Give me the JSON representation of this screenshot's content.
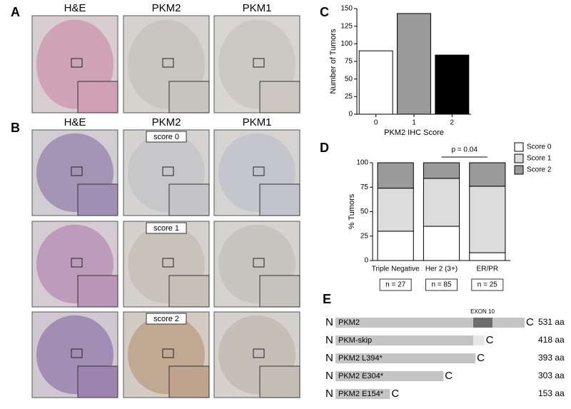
{
  "panel_labels": [
    "A",
    "B",
    "C",
    "D",
    "E"
  ],
  "panel_a": {
    "columns": [
      "H&E",
      "PKM2",
      "PKM1"
    ]
  },
  "panel_b": {
    "columns": [
      "H&E",
      "PKM2",
      "PKM1"
    ],
    "scores": [
      "score 0",
      "score 1",
      "score 2"
    ]
  },
  "chart_data": [
    {
      "type": "bar",
      "categories": [
        "0",
        "1",
        "2"
      ],
      "values": [
        90,
        143,
        84
      ],
      "colors": [
        "#ffffff",
        "#9a9a9a",
        "#000000"
      ],
      "ylim": [
        0,
        150
      ],
      "yticks": [
        0,
        25,
        50,
        75,
        100,
        125,
        150
      ],
      "xlabel": "PKM2 IHC Score",
      "ylabel": "Number of Tumors"
    },
    {
      "type": "stacked_bar",
      "categories": [
        "Triple Negative",
        "Her 2 (3+)",
        "ER/PR"
      ],
      "series": [
        {
          "name": "Score 0",
          "color": "#ffffff",
          "values": [
            30,
            35,
            8
          ]
        },
        {
          "name": "Score 1",
          "color": "#dcdcdc",
          "values": [
            44,
            49,
            68
          ]
        },
        {
          "name": "Score 2",
          "color": "#9a9a9a",
          "values": [
            26,
            16,
            24
          ]
        }
      ],
      "ylim": [
        0,
        100
      ],
      "yticks": [
        0,
        25,
        50,
        75,
        100
      ],
      "ylabel": "% Tumors",
      "annotation": "p = 0.04",
      "sample_sizes": [
        "n = 27",
        "n = 85",
        "n = 25"
      ],
      "legend": "upper right"
    }
  ],
  "panel_e": {
    "annotation": "EXON 10",
    "n_terminus": "N",
    "c_terminus": "C",
    "proteins": [
      {
        "name": "PKM2",
        "length": {
          "value": 531,
          "label": "531 aa"
        }
      },
      {
        "name": "PKM-skip",
        "length": {
          "value": 418,
          "label": "418 aa"
        }
      },
      {
        "name": "PKM2 L394*",
        "length": {
          "value": 393,
          "label": "393 aa"
        }
      },
      {
        "name": "PKM2 E304*",
        "length": {
          "value": 303,
          "label": "303 aa"
        }
      },
      {
        "name": "PKM2 E154*",
        "length": {
          "value": 153,
          "label": "153 aa"
        }
      }
    ]
  }
}
